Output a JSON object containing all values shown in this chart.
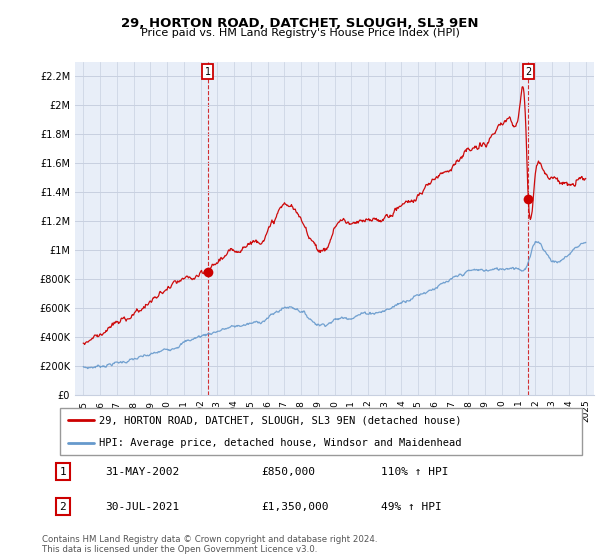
{
  "title": "29, HORTON ROAD, DATCHET, SLOUGH, SL3 9EN",
  "subtitle": "Price paid vs. HM Land Registry's House Price Index (HPI)",
  "legend_line1": "29, HORTON ROAD, DATCHET, SLOUGH, SL3 9EN (detached house)",
  "legend_line2": "HPI: Average price, detached house, Windsor and Maidenhead",
  "footnote": "Contains HM Land Registry data © Crown copyright and database right 2024.\nThis data is licensed under the Open Government Licence v3.0.",
  "sale1_label": "1",
  "sale1_date": "31-MAY-2002",
  "sale1_price": "£850,000",
  "sale1_hpi": "110% ↑ HPI",
  "sale2_label": "2",
  "sale2_date": "30-JUL-2021",
  "sale2_price": "£1,350,000",
  "sale2_hpi": "49% ↑ HPI",
  "sale1_x": 2002.42,
  "sale1_y": 850000,
  "sale2_x": 2021.58,
  "sale2_y": 1350000,
  "vline1_x": 2002.42,
  "vline2_x": 2021.58,
  "red_color": "#cc0000",
  "blue_color": "#6699cc",
  "background_color": "#e8eef8",
  "grid_color": "#c8d0e0",
  "ylim": [
    0,
    2300000
  ],
  "xlim": [
    1994.5,
    2025.5
  ],
  "yticks": [
    0,
    200000,
    400000,
    600000,
    800000,
    1000000,
    1200000,
    1400000,
    1600000,
    1800000,
    2000000,
    2200000
  ],
  "ytick_labels": [
    "£0",
    "£200K",
    "£400K",
    "£600K",
    "£800K",
    "£1M",
    "£1.2M",
    "£1.4M",
    "£1.6M",
    "£1.8M",
    "£2M",
    "£2.2M"
  ],
  "xtick_years": [
    1995,
    1996,
    1997,
    1998,
    1999,
    2000,
    2001,
    2002,
    2003,
    2004,
    2005,
    2006,
    2007,
    2008,
    2009,
    2010,
    2011,
    2012,
    2013,
    2014,
    2015,
    2016,
    2017,
    2018,
    2019,
    2020,
    2021,
    2022,
    2023,
    2024,
    2025
  ]
}
